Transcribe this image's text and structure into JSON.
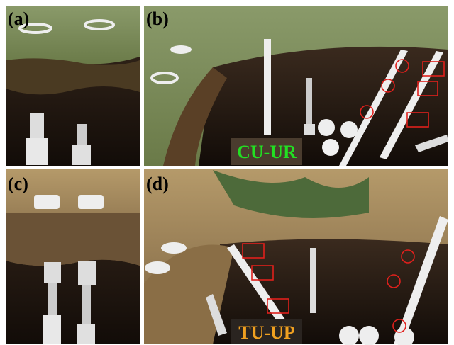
{
  "panels": [
    {
      "label": "(a)"
    },
    {
      "label": "(b)",
      "caption": "CU-UR"
    },
    {
      "label": "(c)"
    },
    {
      "label": "(d)",
      "caption": "TU-UP"
    }
  ]
}
